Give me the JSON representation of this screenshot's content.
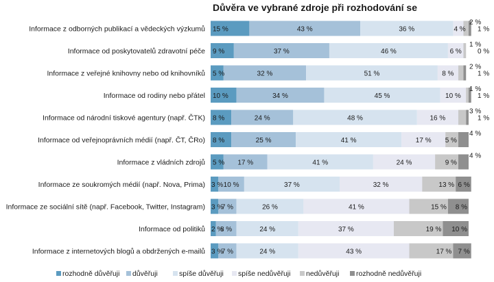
{
  "chart_data": {
    "type": "bar",
    "orientation": "horizontal",
    "stacked": true,
    "title": "Důvěra ve vybrané zdroje při rozhodování se",
    "xlabel": "",
    "ylabel": "",
    "xlim": [
      0,
      100
    ],
    "grid": false,
    "legend_position": "bottom",
    "categories": [
      "Informace z odborných publikací a vědeckých výzkumů",
      "Informace od poskytovatelů zdravotní péče",
      "Informace z veřejné knihovny nebo od knihovníků",
      "Informace od rodiny nebo přátel",
      "Informace od národní tiskové agentury (např. ČTK)",
      "Informace od veřejnoprávních médií (např. ČT, ČRo)",
      "Informace z vládních zdrojů",
      "Informace ze soukromých médií (např. Nova, Prima)",
      "Informace ze sociální sítě (např. Facebook, Twitter, Instagram)",
      "Informace od politiků",
      "Informace z internetových blogů a obdržených e-mailů"
    ],
    "series": [
      {
        "name": "rozhodně důvěřuji",
        "color": "#5b9bc0",
        "values": [
          15,
          9,
          5,
          10,
          8,
          8,
          5,
          3,
          3,
          2,
          3
        ]
      },
      {
        "name": "důvěřuji",
        "color": "#a5c1d9",
        "values": [
          43,
          37,
          32,
          34,
          24,
          25,
          17,
          10,
          7,
          8,
          7
        ]
      },
      {
        "name": "spíše důvěřuji",
        "color": "#d6e3ef",
        "values": [
          36,
          46,
          51,
          45,
          48,
          41,
          41,
          37,
          26,
          24,
          24
        ]
      },
      {
        "name": "spíše nedůvěřuji",
        "color": "#e7e8f2",
        "values": [
          4,
          6,
          8,
          10,
          16,
          17,
          24,
          32,
          41,
          37,
          43
        ]
      },
      {
        "name": "nedůvěřuji",
        "color": "#c8c8c8",
        "values": [
          2,
          1,
          2,
          1,
          3,
          5,
          9,
          13,
          15,
          19,
          17
        ]
      },
      {
        "name": "rozhodně nedůvěřuji",
        "color": "#8f8f8f",
        "values": [
          1,
          0,
          1,
          1,
          1,
          4,
          4,
          6,
          8,
          10,
          7
        ]
      }
    ],
    "value_suffix": " %"
  }
}
